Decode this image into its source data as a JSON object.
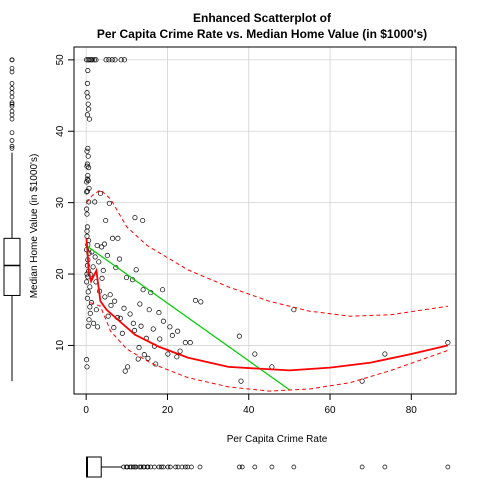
{
  "chart_data": {
    "type": "scatter",
    "title": "Enhanced Scatterplot of",
    "subtitle": "Per Capita Crime Rate vs. Median Home Value (in $1000's)",
    "xlabel": "Per Capita Crime Rate",
    "ylabel": "Median Home Value (in $1000's)",
    "xlim": [
      -3,
      91
    ],
    "ylim": [
      3.2,
      51.8
    ],
    "xticks": [
      0,
      20,
      40,
      60,
      80
    ],
    "yticks": [
      10,
      20,
      30,
      40,
      50
    ],
    "grid": true,
    "colors": {
      "points": "#000000",
      "smooth": "#ff0000",
      "spread": "#ff0000",
      "regression": "#00cc00",
      "boxplot": "#000000"
    },
    "points": [
      [
        0.1,
        50.0
      ],
      [
        0.5,
        50.0
      ],
      [
        0.8,
        50.0
      ],
      [
        1.2,
        50.0
      ],
      [
        1.5,
        50.0
      ],
      [
        2.0,
        50.0
      ],
      [
        2.4,
        50.0
      ],
      [
        4.9,
        50.0
      ],
      [
        5.6,
        50.0
      ],
      [
        6.4,
        50.0
      ],
      [
        7.1,
        50.0
      ],
      [
        8.6,
        50.0
      ],
      [
        9.4,
        50.0
      ],
      [
        0.4,
        48.5
      ],
      [
        0.3,
        46.7
      ],
      [
        0.2,
        45.4
      ],
      [
        0.4,
        44.8
      ],
      [
        0.5,
        43.8
      ],
      [
        0.6,
        43.1
      ],
      [
        0.3,
        42.3
      ],
      [
        0.8,
        41.7
      ],
      [
        0.4,
        37.6
      ],
      [
        0.2,
        37.2
      ],
      [
        0.5,
        36.5
      ],
      [
        0.3,
        35.4
      ],
      [
        0.6,
        34.9
      ],
      [
        0.4,
        33.8
      ],
      [
        0.5,
        33.1
      ],
      [
        0.7,
        32.0
      ],
      [
        0.3,
        31.6
      ],
      [
        0.6,
        30.1
      ],
      [
        3.5,
        31.3
      ],
      [
        2.1,
        30.1
      ],
      [
        5.7,
        29.9
      ],
      [
        4.8,
        27.5
      ],
      [
        12.0,
        27.9
      ],
      [
        13.9,
        27.5
      ],
      [
        6.5,
        25.0
      ],
      [
        7.8,
        25.0
      ],
      [
        4.5,
        24.2
      ],
      [
        3.8,
        23.8
      ],
      [
        2.7,
        24.0
      ],
      [
        1.4,
        23.1
      ],
      [
        5.2,
        22.6
      ],
      [
        8.2,
        22.1
      ],
      [
        7.3,
        20.9
      ],
      [
        12.3,
        20.6
      ],
      [
        9.9,
        19.5
      ],
      [
        11.4,
        19.2
      ],
      [
        14.0,
        17.8
      ],
      [
        15.9,
        17.4
      ],
      [
        18.8,
        17.8
      ],
      [
        13.2,
        15.8
      ],
      [
        15.5,
        15.0
      ],
      [
        17.9,
        14.6
      ],
      [
        19.0,
        13.4
      ],
      [
        20.6,
        12.6
      ],
      [
        22.5,
        12.0
      ],
      [
        24.4,
        10.4
      ],
      [
        25.6,
        10.4
      ],
      [
        23.1,
        9.2
      ],
      [
        22.3,
        8.4
      ],
      [
        20.1,
        8.8
      ],
      [
        17.1,
        7.4
      ],
      [
        15.2,
        8.2
      ],
      [
        14.3,
        8.7
      ],
      [
        12.8,
        8.1
      ],
      [
        10.2,
        7.0
      ],
      [
        9.6,
        6.4
      ],
      [
        8.9,
        11.7
      ],
      [
        7.7,
        13.9
      ],
      [
        6.1,
        15.6
      ],
      [
        5.4,
        14.1
      ],
      [
        4.6,
        16.8
      ],
      [
        3.3,
        17.6
      ],
      [
        2.4,
        18.9
      ],
      [
        3.9,
        19.4
      ],
      [
        4.2,
        20.5
      ],
      [
        10.8,
        14.4
      ],
      [
        11.6,
        13.1
      ],
      [
        13.5,
        12.7
      ],
      [
        16.5,
        12.3
      ],
      [
        18.1,
        10.9
      ],
      [
        21.2,
        11.4
      ],
      [
        26.9,
        16.3
      ],
      [
        28.2,
        16.1
      ],
      [
        37.7,
        11.3
      ],
      [
        38.1,
        5.0
      ],
      [
        41.5,
        8.8
      ],
      [
        45.7,
        7.0
      ],
      [
        51.1,
        15.0
      ],
      [
        67.9,
        5.0
      ],
      [
        73.5,
        8.8
      ],
      [
        89.0,
        10.4
      ],
      [
        14.8,
        11.0
      ],
      [
        9.3,
        15.2
      ],
      [
        6.8,
        12.5
      ],
      [
        8.4,
        13.8
      ],
      [
        7.0,
        16.2
      ],
      [
        5.9,
        17.1
      ],
      [
        11.9,
        12.1
      ],
      [
        13.0,
        9.7
      ],
      [
        16.8,
        9.9
      ],
      [
        1.0,
        14.5
      ],
      [
        1.8,
        13.1
      ],
      [
        2.8,
        12.6
      ],
      [
        0.9,
        15.4
      ],
      [
        1.3,
        16.0
      ],
      [
        2.5,
        15.0
      ],
      [
        0.1,
        8.0
      ],
      [
        0.2,
        7.0
      ],
      [
        0.5,
        12.7
      ],
      [
        0.7,
        13.6
      ],
      [
        0.9,
        18.2
      ],
      [
        1.1,
        19.9
      ],
      [
        1.7,
        21.0
      ],
      [
        2.2,
        22.4
      ],
      [
        3.1,
        21.7
      ],
      [
        0.4,
        22.0
      ],
      [
        0.6,
        24.7
      ],
      [
        0.3,
        26.6
      ],
      [
        0.2,
        28.4
      ],
      [
        0.1,
        29.1
      ],
      [
        0.2,
        25.3
      ],
      [
        0.1,
        23.4
      ],
      [
        0.3,
        21.2
      ],
      [
        0.4,
        19.6
      ],
      [
        0.5,
        17.5
      ],
      [
        0.6,
        20.4
      ],
      [
        0.7,
        22.9
      ],
      [
        0.2,
        20.0
      ],
      [
        0.1,
        18.9
      ],
      [
        0.3,
        16.6
      ],
      [
        0.4,
        24.1
      ],
      [
        0.2,
        26.0
      ],
      [
        0.1,
        31.5
      ],
      [
        0.3,
        33.3
      ],
      [
        0.2,
        35.1
      ],
      [
        0.1,
        32.9
      ]
    ],
    "regression_line": [
      [
        0,
        24.0
      ],
      [
        50,
        3.8
      ]
    ],
    "smooth_line": [
      [
        0.05,
        25.0
      ],
      [
        0.3,
        23.5
      ],
      [
        0.6,
        20.5
      ],
      [
        1.2,
        19.0
      ],
      [
        2.5,
        20.5
      ],
      [
        3.5,
        16.2
      ],
      [
        5,
        15.0
      ],
      [
        8,
        13.5
      ],
      [
        12,
        11.5
      ],
      [
        18,
        9.8
      ],
      [
        25,
        8.3
      ],
      [
        35,
        7.0
      ],
      [
        50,
        6.5
      ],
      [
        60,
        6.9
      ],
      [
        70,
        7.6
      ],
      [
        80,
        8.8
      ],
      [
        89,
        10.0
      ]
    ],
    "spread_upper": [
      [
        0.1,
        30.0
      ],
      [
        1.5,
        31.0
      ],
      [
        3.5,
        31.8
      ],
      [
        6,
        30.5
      ],
      [
        10,
        26.6
      ],
      [
        15,
        24.0
      ],
      [
        25,
        20.6
      ],
      [
        35,
        18.2
      ],
      [
        45,
        16.2
      ],
      [
        55,
        14.8
      ],
      [
        65,
        14.1
      ],
      [
        75,
        14.3
      ],
      [
        89,
        15.5
      ]
    ],
    "spread_lower": [
      [
        1.0,
        16.0
      ],
      [
        3.5,
        15.5
      ],
      [
        6,
        12.0
      ],
      [
        10,
        9.5
      ],
      [
        16,
        7.5
      ],
      [
        25,
        5.5
      ],
      [
        35,
        4.2
      ],
      [
        45,
        3.6
      ],
      [
        55,
        3.9
      ],
      [
        65,
        4.8
      ],
      [
        75,
        6.5
      ],
      [
        89,
        9.3
      ]
    ],
    "y_boxplot": {
      "whisker_low": 5.0,
      "q1": 17.0,
      "median": 21.2,
      "q3": 25.0,
      "whisker_high": 37.0,
      "outliers": [
        50,
        50,
        50,
        48.8,
        48.3,
        46.7,
        46.0,
        45.4,
        44.8,
        44.0,
        43.8,
        43.5,
        42.8,
        42.3,
        41.7,
        39.8,
        38.7,
        37.9,
        37.6
      ]
    },
    "x_boxplot": {
      "whisker_low": 0.006,
      "q1": 0.08,
      "median": 0.26,
      "q3": 3.7,
      "whisker_high": 8.9,
      "outliers": [
        9.2,
        9.9,
        10.1,
        10.8,
        11.1,
        11.6,
        12.0,
        12.3,
        13.1,
        13.5,
        14.1,
        14.3,
        15.0,
        15.2,
        15.9,
        16.8,
        17.9,
        18.5,
        19.0,
        20.1,
        20.7,
        22.0,
        22.6,
        23.6,
        24.4,
        25.0,
        25.9,
        28.0,
        37.7,
        38.4,
        41.5,
        45.7,
        51.1,
        67.9,
        73.5,
        89.0
      ]
    }
  }
}
